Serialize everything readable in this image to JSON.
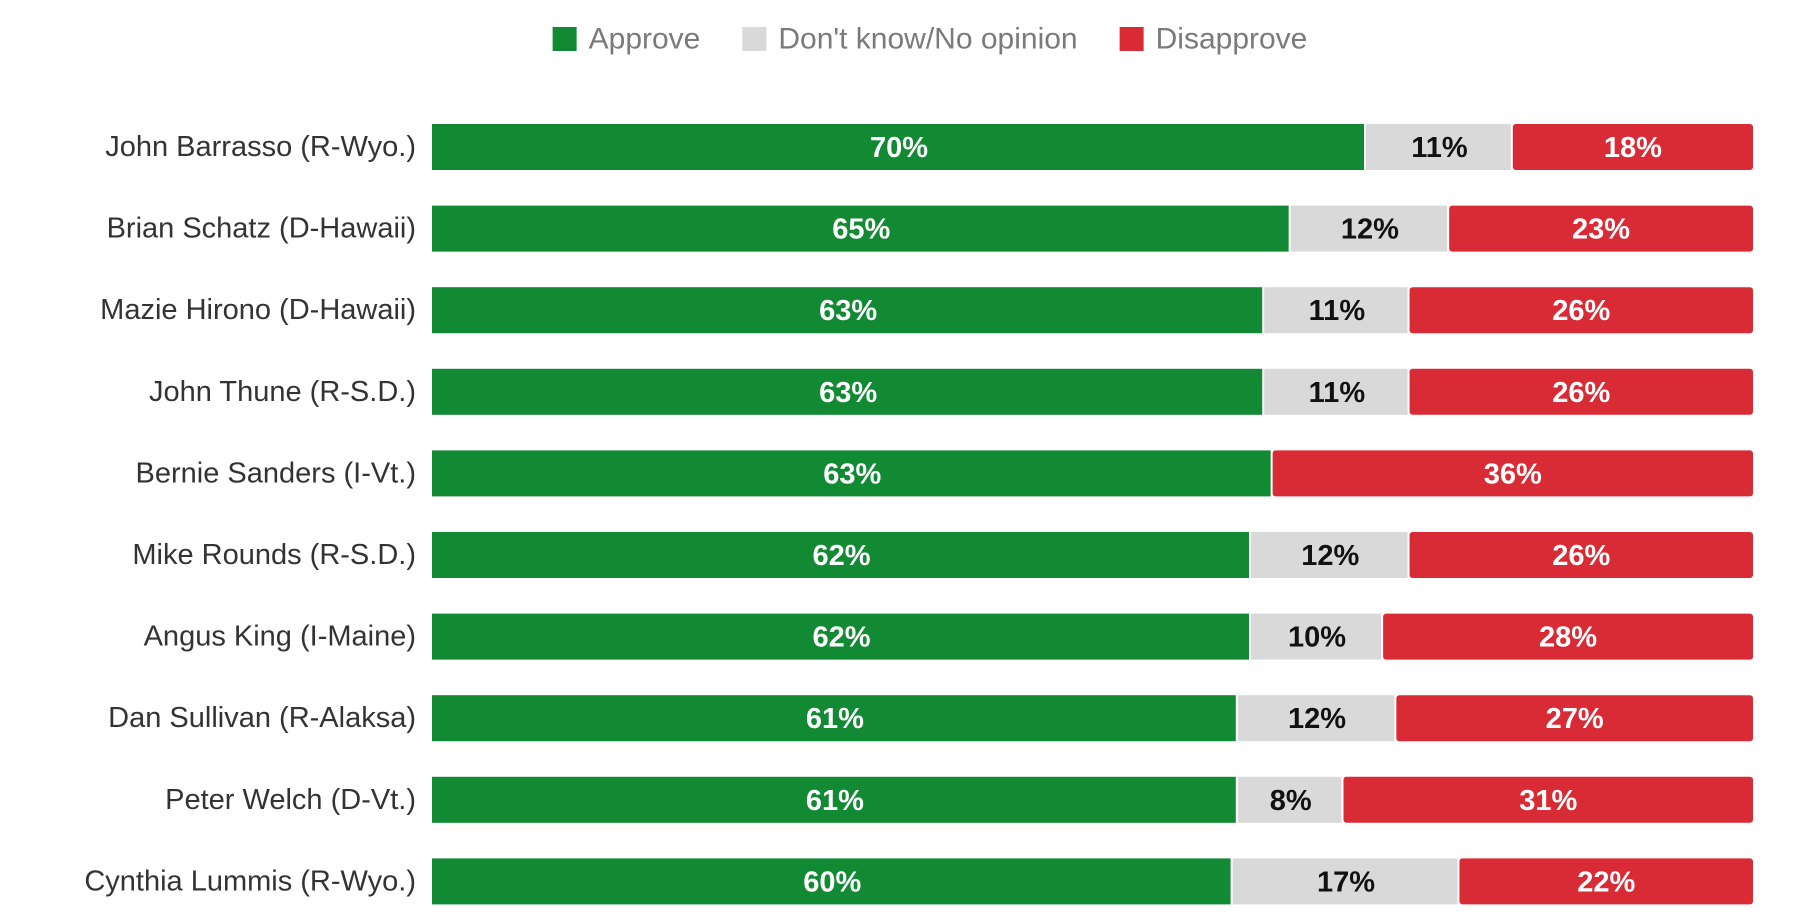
{
  "chart_data": {
    "type": "bar",
    "orientation": "horizontal",
    "stacked": true,
    "normalized": true,
    "title": "",
    "xlabel": "",
    "ylabel": "",
    "xlim": [
      0,
      100
    ],
    "grid": false,
    "legend_position": "top-center",
    "categories": [
      "John Barrasso (R-Wyo.)",
      "Brian Schatz (D-Hawaii)",
      "Mazie Hirono (D-Hawaii)",
      "John Thune (R-S.D.)",
      "Bernie Sanders (I-Vt.)",
      "Mike Rounds (R-S.D.)",
      "Angus King (I-Maine)",
      "Dan Sullivan (R-Alaksa)",
      "Peter Welch (D-Vt.)",
      "Cynthia Lummis (R-Wyo.)"
    ],
    "series": [
      {
        "name": "Approve",
        "color": "#118a33",
        "label_color": "#ffffff",
        "values": [
          70,
          65,
          63,
          63,
          63,
          62,
          62,
          61,
          61,
          60
        ],
        "labels": [
          "70%",
          "65%",
          "63%",
          "63%",
          "63%",
          "62%",
          "62%",
          "61%",
          "61%",
          "60%"
        ]
      },
      {
        "name": "Don't know/No opinion",
        "color": "#d9d9d9",
        "label_color": "#111111",
        "values": [
          11,
          12,
          11,
          11,
          0,
          12,
          10,
          12,
          8,
          17
        ],
        "labels": [
          "11%",
          "12%",
          "11%",
          "11%",
          "",
          "12%",
          "10%",
          "12%",
          "8%",
          "17%"
        ]
      },
      {
        "name": "Disapprove",
        "color": "#d92b35",
        "label_color": "#ffffff",
        "values": [
          18,
          23,
          26,
          26,
          36,
          26,
          28,
          27,
          31,
          22
        ],
        "labels": [
          "18%",
          "23%",
          "26%",
          "26%",
          "36%",
          "26%",
          "28%",
          "27%",
          "31%",
          "22%"
        ]
      }
    ]
  }
}
